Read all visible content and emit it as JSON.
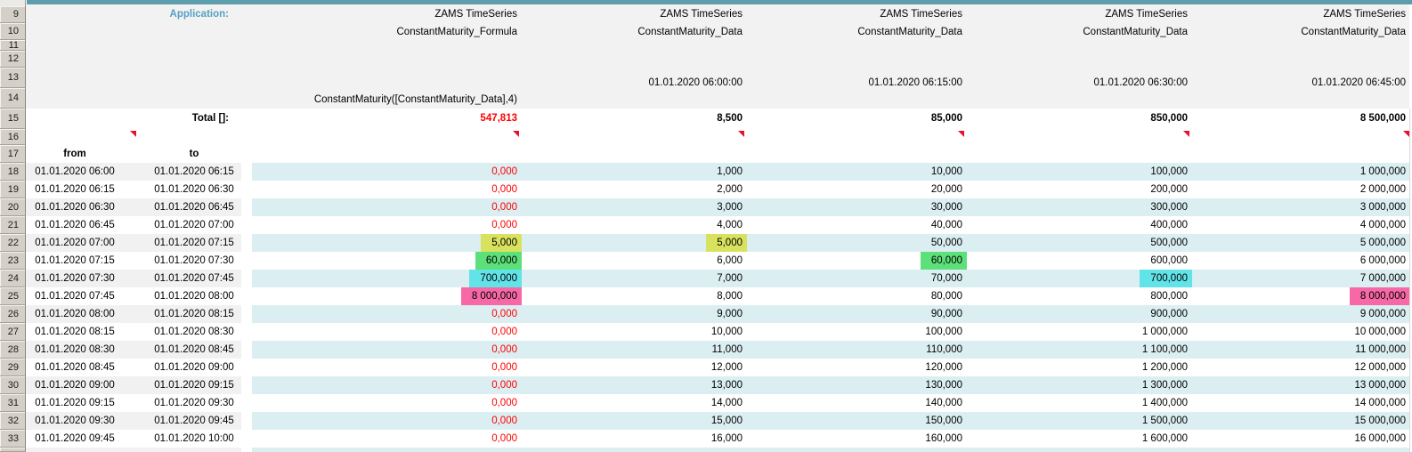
{
  "colors": {
    "top_bar": "#5E9DAC",
    "header_background": "#F2F2F2",
    "gutter_background": "#D4D0C8",
    "stripe_left": "#F1F1F1",
    "stripe_right": "#DBEEF1",
    "value_red": "#FF0000",
    "flag_red": "#E8112D",
    "application_label": "#55A1C4",
    "highlight_yellow": "#D9E25F",
    "highlight_green": "#5CE07A",
    "highlight_cyan": "#62E3E8",
    "highlight_pink": "#F768A7"
  },
  "header": {
    "application_label": "Application:",
    "total_label": "Total []:",
    "columns": [
      {
        "title": "ZAMS TimeSeries",
        "subtitle": "ConstantMaturity_Formula",
        "timestamp": "",
        "formula": "ConstantMaturity([ConstantMaturity_Data],4)",
        "total": "547,813",
        "total_color": "#FF0000"
      },
      {
        "title": "ZAMS TimeSeries",
        "subtitle": "ConstantMaturity_Data",
        "timestamp": "01.01.2020 06:00:00",
        "formula": "",
        "total": "8,500",
        "total_color": "#000000"
      },
      {
        "title": "ZAMS TimeSeries",
        "subtitle": "ConstantMaturity_Data",
        "timestamp": "01.01.2020 06:15:00",
        "formula": "",
        "total": "85,000",
        "total_color": "#000000"
      },
      {
        "title": "ZAMS TimeSeries",
        "subtitle": "ConstantMaturity_Data",
        "timestamp": "01.01.2020 06:30:00",
        "formula": "",
        "total": "850,000",
        "total_color": "#000000"
      },
      {
        "title": "ZAMS TimeSeries",
        "subtitle": "ConstantMaturity_Data",
        "timestamp": "01.01.2020 06:45:00",
        "formula": "",
        "total": "8 500,000",
        "total_color": "#000000"
      }
    ]
  },
  "table": {
    "from_header": "from",
    "to_header": "to",
    "header_row_numbers": [
      9,
      10,
      11,
      12,
      13,
      14,
      15,
      16,
      17
    ],
    "data_row_numbers": [
      18,
      19,
      20,
      21,
      22,
      23,
      24,
      25,
      26,
      27,
      28,
      29,
      30,
      31,
      32,
      33
    ],
    "rows": [
      {
        "from": "01.01.2020 06:00",
        "to": "01.01.2020 06:15",
        "values": [
          "0,000",
          "1,000",
          "10,000",
          "100,000",
          "1 000,000"
        ],
        "styles": [
          "red",
          "",
          "",
          "",
          ""
        ]
      },
      {
        "from": "01.01.2020 06:15",
        "to": "01.01.2020 06:30",
        "values": [
          "0,000",
          "2,000",
          "20,000",
          "200,000",
          "2 000,000"
        ],
        "styles": [
          "red",
          "",
          "",
          "",
          ""
        ]
      },
      {
        "from": "01.01.2020 06:30",
        "to": "01.01.2020 06:45",
        "values": [
          "0,000",
          "3,000",
          "30,000",
          "300,000",
          "3 000,000"
        ],
        "styles": [
          "red",
          "",
          "",
          "",
          ""
        ]
      },
      {
        "from": "01.01.2020 06:45",
        "to": "01.01.2020 07:00",
        "values": [
          "0,000",
          "4,000",
          "40,000",
          "400,000",
          "4 000,000"
        ],
        "styles": [
          "red",
          "",
          "",
          "",
          ""
        ]
      },
      {
        "from": "01.01.2020 07:00",
        "to": "01.01.2020 07:15",
        "values": [
          "5,000",
          "5,000",
          "50,000",
          "500,000",
          "5 000,000"
        ],
        "styles": [
          "hl-yellow",
          "hl-yellow",
          "",
          "",
          ""
        ]
      },
      {
        "from": "01.01.2020 07:15",
        "to": "01.01.2020 07:30",
        "values": [
          "60,000",
          "6,000",
          "60,000",
          "600,000",
          "6 000,000"
        ],
        "styles": [
          "hl-green",
          "",
          "hl-green",
          "",
          ""
        ]
      },
      {
        "from": "01.01.2020 07:30",
        "to": "01.01.2020 07:45",
        "values": [
          "700,000",
          "7,000",
          "70,000",
          "700,000",
          "7 000,000"
        ],
        "styles": [
          "hl-cyan",
          "",
          "",
          "hl-cyan",
          ""
        ]
      },
      {
        "from": "01.01.2020 07:45",
        "to": "01.01.2020 08:00",
        "values": [
          "8 000,000",
          "8,000",
          "80,000",
          "800,000",
          "8 000,000"
        ],
        "styles": [
          "hl-pink",
          "",
          "",
          "",
          "hl-pink"
        ]
      },
      {
        "from": "01.01.2020 08:00",
        "to": "01.01.2020 08:15",
        "values": [
          "0,000",
          "9,000",
          "90,000",
          "900,000",
          "9 000,000"
        ],
        "styles": [
          "red",
          "",
          "",
          "",
          ""
        ]
      },
      {
        "from": "01.01.2020 08:15",
        "to": "01.01.2020 08:30",
        "values": [
          "0,000",
          "10,000",
          "100,000",
          "1 000,000",
          "10 000,000"
        ],
        "styles": [
          "red",
          "",
          "",
          "",
          ""
        ]
      },
      {
        "from": "01.01.2020 08:30",
        "to": "01.01.2020 08:45",
        "values": [
          "0,000",
          "11,000",
          "110,000",
          "1 100,000",
          "11 000,000"
        ],
        "styles": [
          "red",
          "",
          "",
          "",
          ""
        ]
      },
      {
        "from": "01.01.2020 08:45",
        "to": "01.01.2020 09:00",
        "values": [
          "0,000",
          "12,000",
          "120,000",
          "1 200,000",
          "12 000,000"
        ],
        "styles": [
          "red",
          "",
          "",
          "",
          ""
        ]
      },
      {
        "from": "01.01.2020 09:00",
        "to": "01.01.2020 09:15",
        "values": [
          "0,000",
          "13,000",
          "130,000",
          "1 300,000",
          "13 000,000"
        ],
        "styles": [
          "red",
          "",
          "",
          "",
          ""
        ]
      },
      {
        "from": "01.01.2020 09:15",
        "to": "01.01.2020 09:30",
        "values": [
          "0,000",
          "14,000",
          "140,000",
          "1 400,000",
          "14 000,000"
        ],
        "styles": [
          "red",
          "",
          "",
          "",
          ""
        ]
      },
      {
        "from": "01.01.2020 09:30",
        "to": "01.01.2020 09:45",
        "values": [
          "0,000",
          "15,000",
          "150,000",
          "1 500,000",
          "15 000,000"
        ],
        "styles": [
          "red",
          "",
          "",
          "",
          ""
        ]
      },
      {
        "from": "01.01.2020 09:45",
        "to": "01.01.2020 10:00",
        "values": [
          "0,000",
          "16,000",
          "160,000",
          "1 600,000",
          "16 000,000"
        ],
        "styles": [
          "red",
          "",
          "",
          "",
          ""
        ]
      }
    ]
  }
}
